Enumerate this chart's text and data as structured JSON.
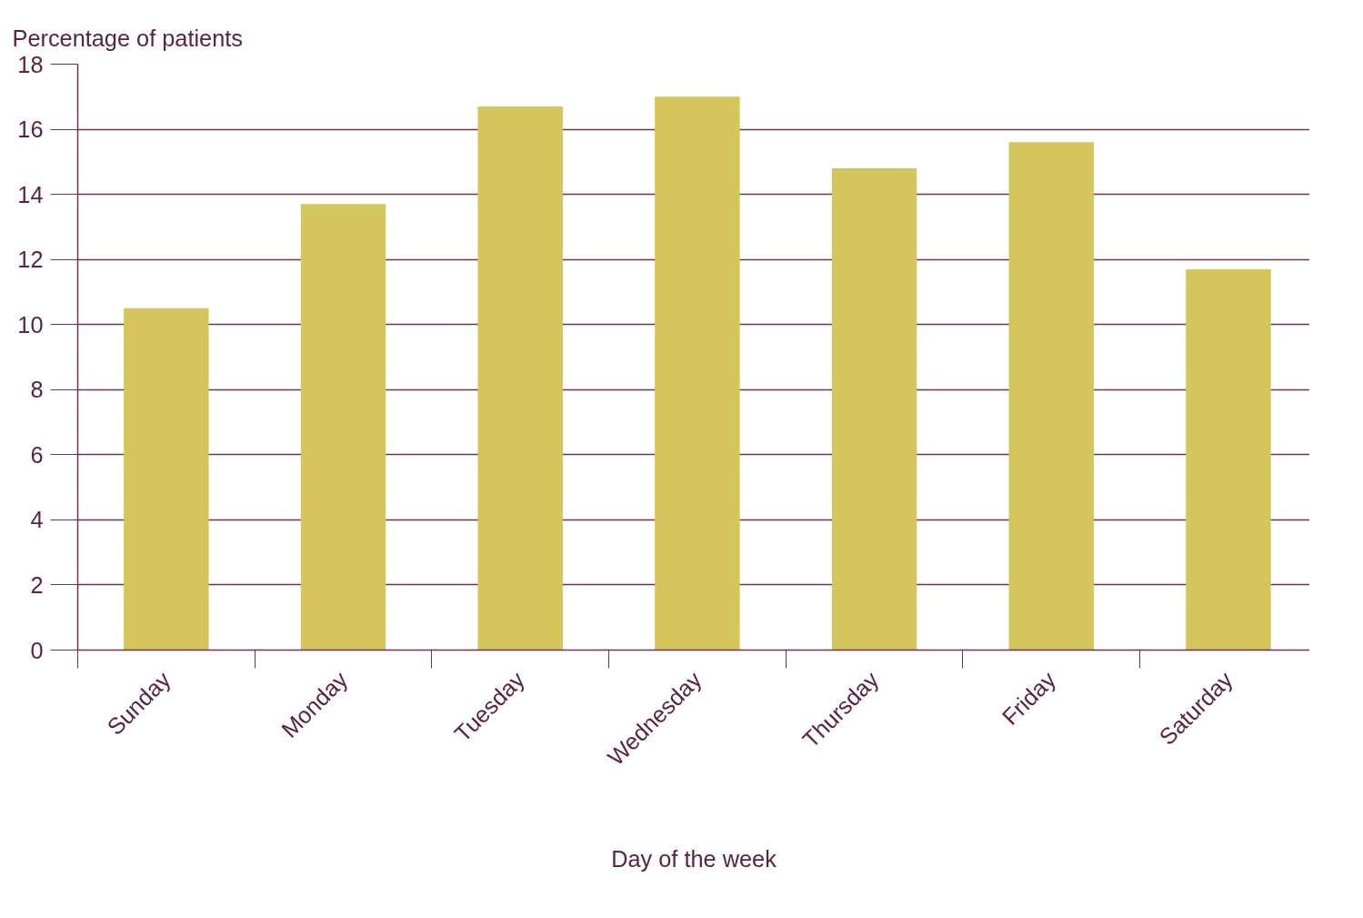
{
  "chart_data": {
    "type": "bar",
    "xlabel": "Day of the week",
    "ylabel": "Percentage of patients",
    "categories": [
      "Sunday",
      "Monday",
      "Tuesday",
      "Wednesday",
      "Thursday",
      "Friday",
      "Saturday"
    ],
    "values": [
      10.5,
      13.7,
      16.7,
      17.0,
      14.8,
      15.6,
      11.7
    ],
    "color": "#d4c55c",
    "ylim": [
      0,
      18
    ],
    "yticks": [
      0,
      2,
      4,
      6,
      8,
      10,
      12,
      14,
      16,
      18
    ],
    "grid": "y"
  }
}
